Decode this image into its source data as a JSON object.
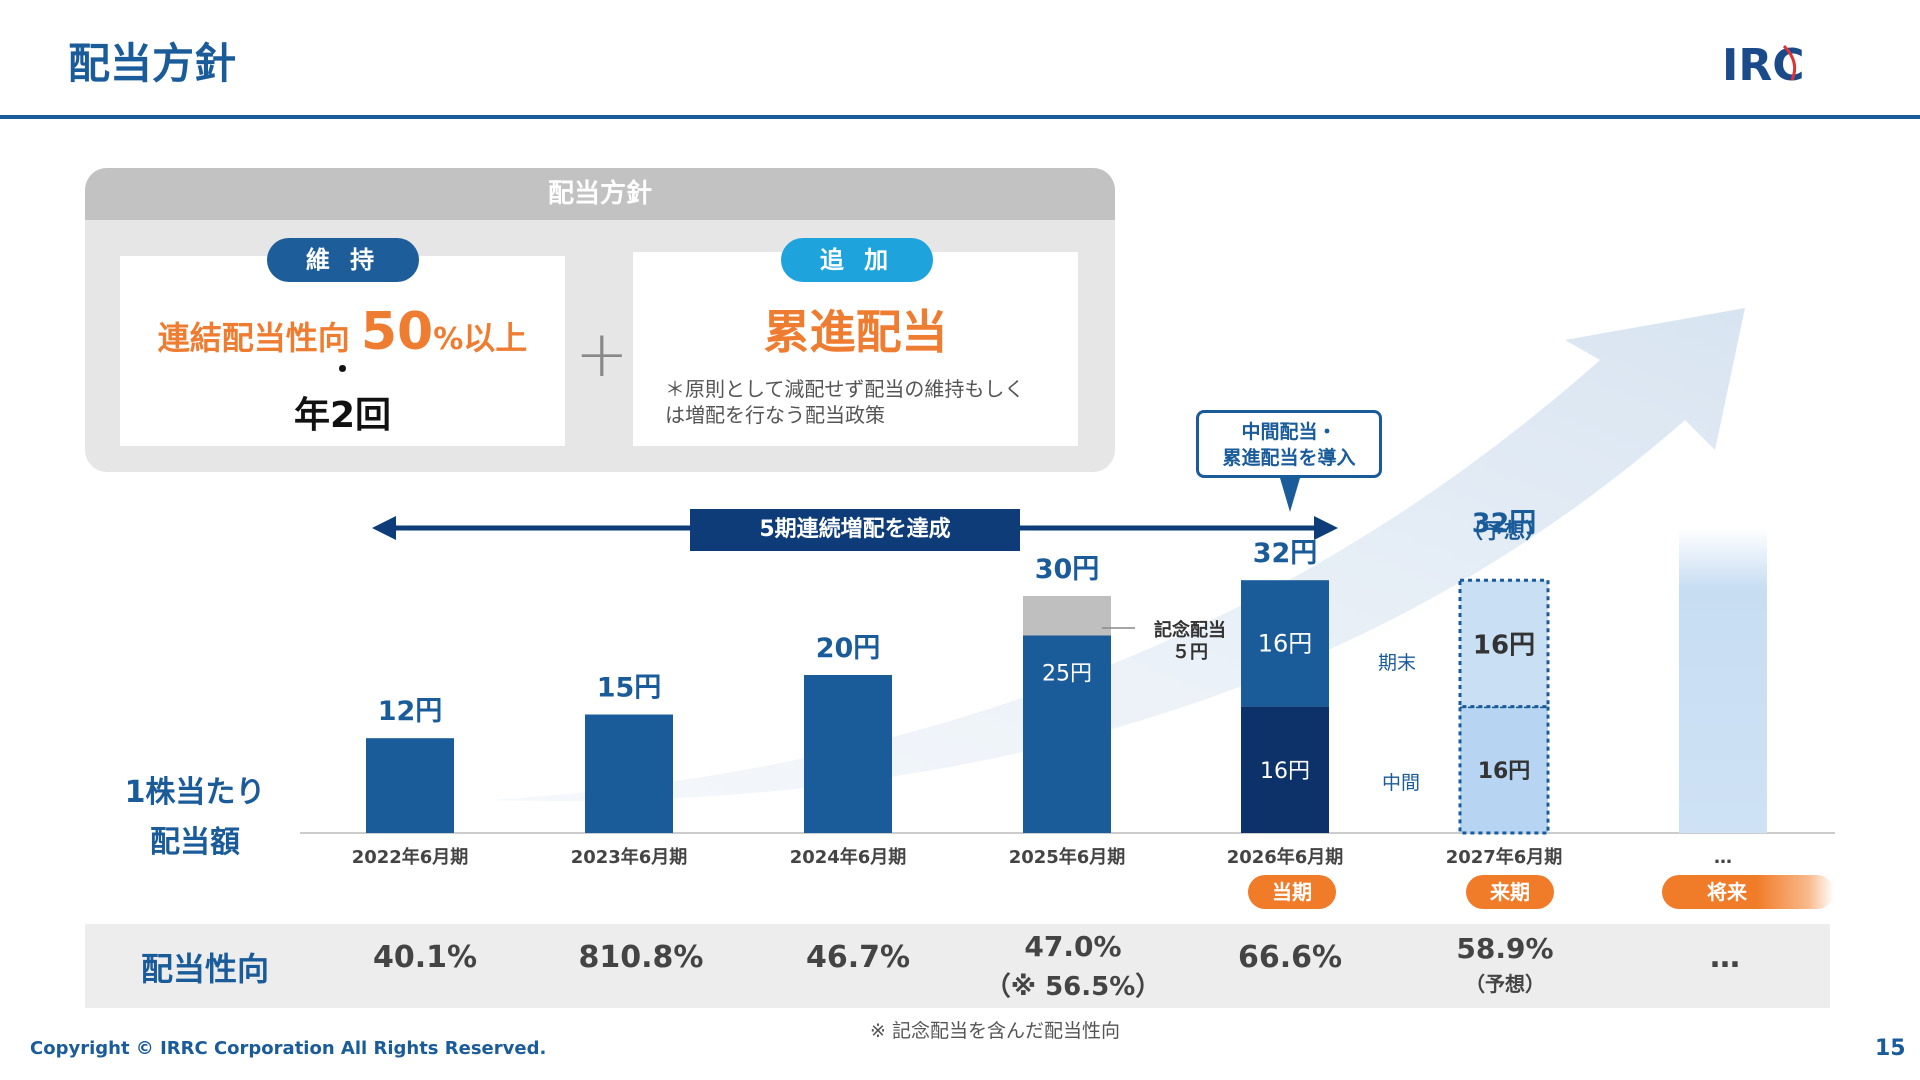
{
  "header": {
    "title": "配当方針",
    "logo_text": "IRC"
  },
  "policy": {
    "panel_title": "配当方針",
    "maintain": {
      "tag": "維 持",
      "prefix": "連結配当性向",
      "value": "50",
      "suffix_pct": "%",
      "suffix": "以上",
      "dot": "・",
      "frequency": "年2回"
    },
    "plus": "+",
    "add": {
      "tag": "追 加",
      "main": "累進配当",
      "note_line1": "＊原則として減配せず配当の維持もしく",
      "note_line2": "は増配を行なう配当政策"
    }
  },
  "callout": {
    "line1": "中間配当・",
    "line2": "累進配当を導入"
  },
  "banner": "5期連続増配を達成",
  "eps_label": {
    "line1": "1株当たり",
    "line2": "配当額"
  },
  "chart_data": {
    "type": "bar",
    "categories": [
      "2022年6月期",
      "2023年6月期",
      "2024年6月期",
      "2025年6月期",
      "2026年6月期",
      "2027年6月期",
      "…"
    ],
    "totals": [
      "12円",
      "15円",
      "20円",
      "30円",
      "32円",
      "32円",
      ""
    ],
    "series": [
      {
        "name": "",
        "values": [
          12,
          15,
          20,
          25,
          null,
          null,
          null
        ],
        "color": "#1a5b9a"
      },
      {
        "name": "記念配当",
        "values": [
          null,
          null,
          null,
          5,
          null,
          null,
          null
        ],
        "color": "#bfbfbf"
      },
      {
        "name": "中間",
        "values": [
          null,
          null,
          null,
          null,
          16,
          16,
          null
        ],
        "color": "#0d3269"
      },
      {
        "name": "期末",
        "values": [
          null,
          null,
          null,
          null,
          16,
          16,
          null
        ],
        "color": "#1a5b9a"
      }
    ],
    "segment_labels": {
      "fy2025_base": "25円",
      "fy2026_interim": "16円",
      "fy2026_final": "16円",
      "fy2027_interim": "16円",
      "fy2027_final": "16円"
    },
    "commemorative_label": {
      "line1": "記念配当",
      "line2": "５円"
    },
    "forecast_note": "（予想）",
    "legend_interim": "中間",
    "legend_final": "期末",
    "ylim": [
      0,
      40
    ]
  },
  "badges": {
    "current": "当期",
    "next": "来期",
    "future": "将来"
  },
  "payout": {
    "label": "配当性向",
    "values": [
      "40.1%",
      "810.8%",
      "46.7%",
      "47.0%",
      "66.6%",
      "58.9%",
      "…"
    ],
    "fy2025_sub": "（※ 56.5%）",
    "fy2027_sub": "（予想）",
    "note": "※ 記念配当を含んだ配当性向"
  },
  "footer": {
    "copyright": "Copyright © IRRC Corporation All Rights Reserved.",
    "page": "15"
  },
  "colors": {
    "primary": "#1a5b9a",
    "navy": "#0d3269",
    "orange": "#ee7d31",
    "cyan": "#1ea3dc"
  }
}
